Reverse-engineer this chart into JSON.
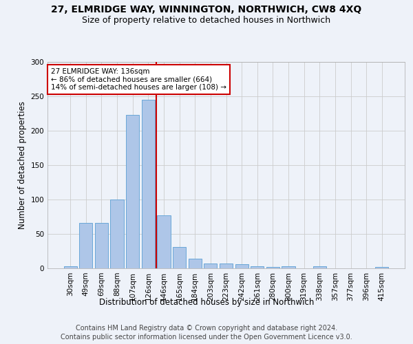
{
  "title": "27, ELMRIDGE WAY, WINNINGTON, NORTHWICH, CW8 4XQ",
  "subtitle": "Size of property relative to detached houses in Northwich",
  "xlabel": "Distribution of detached houses by size in Northwich",
  "ylabel": "Number of detached properties",
  "categories": [
    "30sqm",
    "49sqm",
    "69sqm",
    "88sqm",
    "107sqm",
    "126sqm",
    "146sqm",
    "165sqm",
    "184sqm",
    "203sqm",
    "223sqm",
    "242sqm",
    "261sqm",
    "280sqm",
    "300sqm",
    "319sqm",
    "338sqm",
    "357sqm",
    "377sqm",
    "396sqm",
    "415sqm"
  ],
  "values": [
    3,
    66,
    66,
    100,
    223,
    245,
    77,
    31,
    14,
    7,
    7,
    6,
    3,
    2,
    3,
    0,
    3,
    0,
    0,
    0,
    2
  ],
  "bar_color": "#aec6e8",
  "bar_edgecolor": "#5a9fd4",
  "property_line_x": 5.5,
  "annotation_text": "27 ELMRIDGE WAY: 136sqm\n← 86% of detached houses are smaller (664)\n14% of semi-detached houses are larger (108) →",
  "annotation_box_color": "#ffffff",
  "annotation_box_edgecolor": "#cc0000",
  "vline_color": "#cc0000",
  "ylim": [
    0,
    300
  ],
  "yticks": [
    0,
    50,
    100,
    150,
    200,
    250,
    300
  ],
  "grid_color": "#cccccc",
  "background_color": "#eef2f9",
  "footer1": "Contains HM Land Registry data © Crown copyright and database right 2024.",
  "footer2": "Contains public sector information licensed under the Open Government Licence v3.0.",
  "title_fontsize": 10,
  "subtitle_fontsize": 9,
  "xlabel_fontsize": 8.5,
  "ylabel_fontsize": 8.5,
  "tick_fontsize": 7.5,
  "footer_fontsize": 7
}
